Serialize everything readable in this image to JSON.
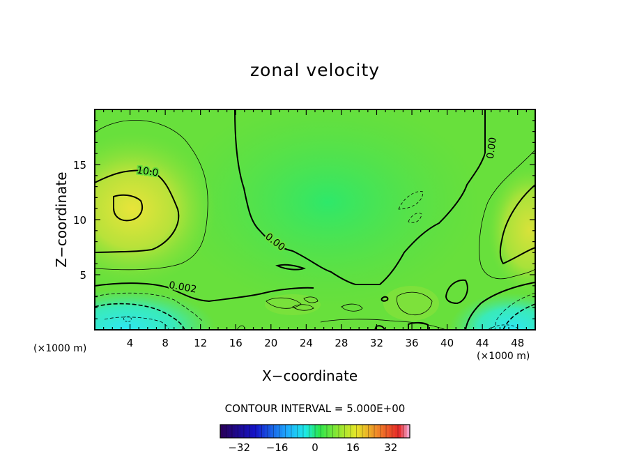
{
  "chart_data": {
    "type": "heatmap",
    "title": "zonal velocity",
    "xlabel": "X−coordinate",
    "ylabel": "Z−coordinate",
    "x_unit_label": "(×1000 m)",
    "xlim": [
      0,
      50
    ],
    "ylim": [
      0,
      20
    ],
    "x_ticks": [
      4,
      8,
      12,
      16,
      20,
      24,
      28,
      32,
      36,
      40,
      44,
      48
    ],
    "y_ticks": [
      5,
      10,
      15
    ],
    "contour_interval_label": "CONTOUR INTERVAL = 5.000E+00",
    "contour_labels": [
      {
        "text": "10.0",
        "x": 6,
        "z": 14.4
      },
      {
        "text": "0.00",
        "x": 20.5,
        "z": 8
      },
      {
        "text": "0.00",
        "x": 45,
        "z": 16.5
      },
      {
        "text": "0.002",
        "x": 10,
        "z": 3.9
      }
    ],
    "colorbar": {
      "range": [
        -40,
        40
      ],
      "tick_labels": [
        "−32",
        "−16",
        "0",
        "16",
        "32"
      ],
      "tick_values": [
        -32,
        -16,
        0,
        16,
        32
      ]
    },
    "features": [
      {
        "kind": "max",
        "x": 4.5,
        "z": 10.8,
        "value": 15
      },
      {
        "kind": "min",
        "x": 2,
        "z": 1,
        "value": -10
      },
      {
        "kind": "min",
        "x": 46,
        "z": 1,
        "value": -10
      },
      {
        "kind": "max",
        "x": 49,
        "z": 8.5,
        "value": 12
      }
    ],
    "grid": false
  }
}
